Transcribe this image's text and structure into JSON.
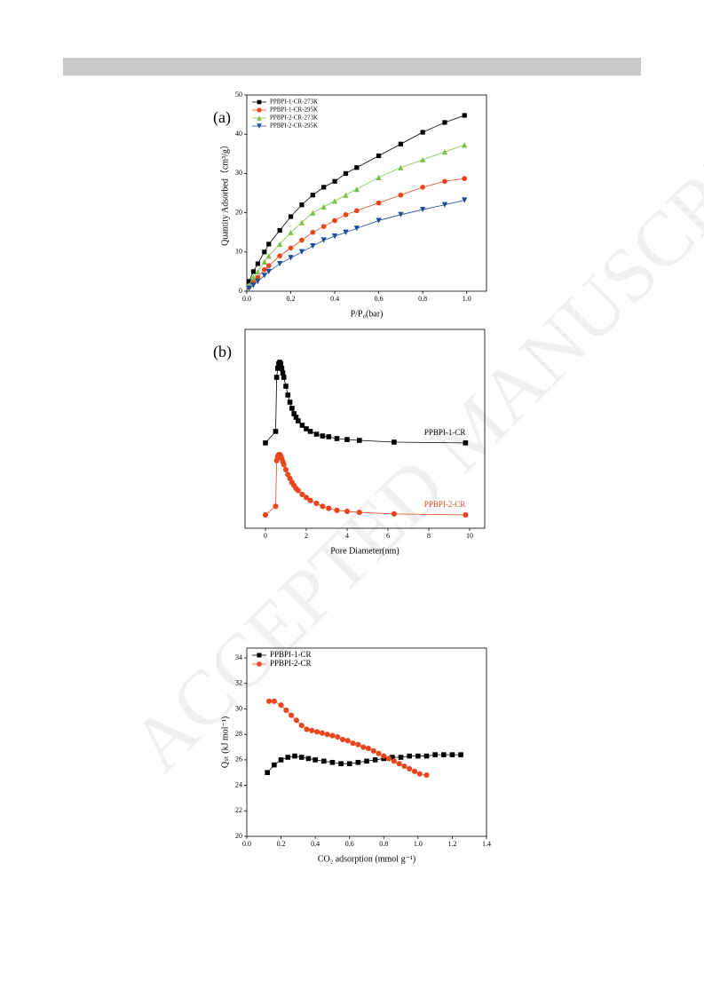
{
  "watermark": "ACCEPTED MANUSCRIPT",
  "chart_data": [
    {
      "type": "line",
      "annotation": "(a)",
      "x_label": "P/P₀(bar)",
      "y_label": "Quantity Adsorbed（cm³/g）",
      "xlim": [
        0,
        1.09
      ],
      "ylim": [
        0,
        50
      ],
      "xticks": [
        {
          "value": 0,
          "label": "0.0"
        },
        0.2,
        0.4,
        0.6,
        0.8,
        {
          "value": 1,
          "label": "1.0"
        }
      ],
      "yticks": [
        0,
        10,
        20,
        30,
        40,
        50
      ],
      "legend": "upper left",
      "series": [
        {
          "name": "PPBPI-1-CR-273K",
          "color": "#000000",
          "marker": "square",
          "x": [
            0.01,
            0.03,
            0.05,
            0.08,
            0.1,
            0.15,
            0.2,
            0.25,
            0.3,
            0.35,
            0.4,
            0.45,
            0.5,
            0.6,
            0.7,
            0.8,
            0.9,
            0.99
          ],
          "values": [
            2.5,
            5,
            7,
            10,
            12,
            15.5,
            19,
            22,
            24.5,
            26.5,
            28,
            30,
            31.5,
            34.5,
            37.5,
            40.5,
            43,
            44.8
          ]
        },
        {
          "name": "PPBPI-1-CR-295K",
          "color": "#e8461e",
          "marker": "circle",
          "x": [
            0.01,
            0.03,
            0.05,
            0.08,
            0.1,
            0.15,
            0.2,
            0.25,
            0.3,
            0.35,
            0.4,
            0.45,
            0.5,
            0.6,
            0.7,
            0.8,
            0.9,
            0.99
          ],
          "values": [
            1,
            2.5,
            3.5,
            5.5,
            6.5,
            9,
            11,
            13,
            15,
            16.5,
            18,
            19.5,
            20.5,
            22.5,
            24.5,
            26.5,
            28,
            28.7
          ]
        },
        {
          "name": "PPBPI-2-CR-273K",
          "color": "#7cc24a",
          "marker": "triangle-up",
          "x": [
            0.01,
            0.03,
            0.05,
            0.08,
            0.1,
            0.15,
            0.2,
            0.25,
            0.3,
            0.35,
            0.4,
            0.45,
            0.5,
            0.6,
            0.7,
            0.8,
            0.9,
            0.99
          ],
          "values": [
            1.5,
            3.5,
            5,
            7.5,
            9,
            12,
            15,
            17.5,
            20,
            21.5,
            23,
            24.5,
            26,
            29,
            31.5,
            33.5,
            35.5,
            37.3
          ]
        },
        {
          "name": "PPBPI-2-CR-295K",
          "color": "#1a4e9a",
          "marker": "triangle-down",
          "x": [
            0.01,
            0.03,
            0.05,
            0.08,
            0.1,
            0.15,
            0.2,
            0.25,
            0.3,
            0.35,
            0.4,
            0.45,
            0.5,
            0.6,
            0.7,
            0.8,
            0.9,
            0.99
          ],
          "values": [
            0.7,
            1.5,
            2.5,
            4,
            5,
            7,
            8.5,
            10,
            11.5,
            13,
            14,
            15,
            16,
            18,
            19.5,
            20.8,
            22,
            23.2
          ]
        }
      ]
    },
    {
      "type": "line",
      "annotation": "(b)",
      "x_label": "Pore Diameter(nm)",
      "xlim": [
        -1,
        10.74
      ],
      "ylim": [
        0,
        100
      ],
      "xticks": [
        0,
        2,
        4,
        6,
        8,
        10
      ],
      "legend": "inline",
      "series": [
        {
          "name": "PPBPI-1-CR",
          "color": "#000000",
          "marker": "square",
          "x": [
            0,
            0.5,
            0.55,
            0.6,
            0.65,
            0.7,
            0.75,
            0.8,
            0.85,
            0.9,
            1.0,
            1.1,
            1.2,
            1.3,
            1.4,
            1.5,
            1.6,
            1.8,
            2.0,
            2.2,
            2.5,
            2.8,
            3.1,
            3.5,
            4.0,
            4.6,
            6.3,
            9.8
          ],
          "values": [
            42.9,
            48.7,
            75.9,
            80.4,
            82.6,
            83.5,
            82.6,
            80.4,
            78.1,
            75.9,
            71.4,
            67,
            63.4,
            60.3,
            57.6,
            55.8,
            54,
            51.8,
            50,
            48.7,
            47.3,
            46.4,
            46,
            45.1,
            44.6,
            44.2,
            43.3,
            42.9
          ]
        },
        {
          "name": "PPBPI-2-CR",
          "color": "#e8461e",
          "marker": "circle",
          "x": [
            0,
            0.5,
            0.55,
            0.6,
            0.65,
            0.7,
            0.75,
            0.8,
            0.85,
            0.9,
            1.0,
            1.1,
            1.2,
            1.3,
            1.4,
            1.5,
            1.6,
            1.8,
            2.0,
            2.2,
            2.5,
            2.8,
            3.1,
            3.5,
            4.0,
            4.6,
            6.3,
            9.8
          ],
          "values": [
            6.7,
            11,
            34,
            36,
            37,
            37,
            36.5,
            35,
            33.5,
            32,
            29.5,
            27,
            25,
            23,
            21.5,
            20,
            19,
            17,
            15.5,
            14,
            12.5,
            11,
            10,
            9,
            8.5,
            8,
            7.2,
            6.7
          ]
        }
      ]
    },
    {
      "type": "line",
      "x_label": "CO₂ adsorption (mmol g⁻¹)",
      "y_label": "Qₛₜ (kJ mol⁻¹)",
      "xlim": [
        0,
        1.4
      ],
      "ylim": [
        20,
        34.77
      ],
      "xticks": [
        {
          "value": 0,
          "label": "0.0"
        },
        0.2,
        0.4,
        0.6,
        0.8,
        {
          "value": 1,
          "label": "1.0"
        },
        1.2,
        1.4
      ],
      "yticks": [
        20,
        22,
        24,
        26,
        28,
        30,
        32,
        34
      ],
      "legend": "upper left",
      "series": [
        {
          "name": "PPBPI-1-CR",
          "color": "#000000",
          "marker": "square",
          "x": [
            0.12,
            0.16,
            0.2,
            0.24,
            0.28,
            0.32,
            0.36,
            0.4,
            0.45,
            0.5,
            0.55,
            0.6,
            0.65,
            0.7,
            0.75,
            0.8,
            0.85,
            0.9,
            0.95,
            1.0,
            1.05,
            1.1,
            1.15,
            1.2,
            1.25
          ],
          "values": [
            25.0,
            25.6,
            26.0,
            26.2,
            26.3,
            26.2,
            26.1,
            26.0,
            25.9,
            25.8,
            25.7,
            25.7,
            25.8,
            25.9,
            26.0,
            26.1,
            26.2,
            26.2,
            26.3,
            26.3,
            26.3,
            26.4,
            26.4,
            26.4,
            26.4
          ]
        },
        {
          "name": "PPBPI-2-CR",
          "color": "#e8461e",
          "marker": "circle",
          "x": [
            0.13,
            0.16,
            0.2,
            0.23,
            0.26,
            0.29,
            0.32,
            0.35,
            0.38,
            0.41,
            0.44,
            0.47,
            0.5,
            0.53,
            0.56,
            0.59,
            0.62,
            0.65,
            0.68,
            0.71,
            0.74,
            0.77,
            0.8,
            0.83,
            0.86,
            0.89,
            0.92,
            0.95,
            0.98,
            1.01,
            1.05
          ],
          "values": [
            30.6,
            30.6,
            30.3,
            29.9,
            29.5,
            29.1,
            28.7,
            28.4,
            28.3,
            28.2,
            28.1,
            28.0,
            27.9,
            27.8,
            27.6,
            27.5,
            27.3,
            27.2,
            27.0,
            26.9,
            26.7,
            26.5,
            26.3,
            26.1,
            25.9,
            25.7,
            25.5,
            25.3,
            25.1,
            24.9,
            24.8
          ]
        }
      ]
    }
  ]
}
